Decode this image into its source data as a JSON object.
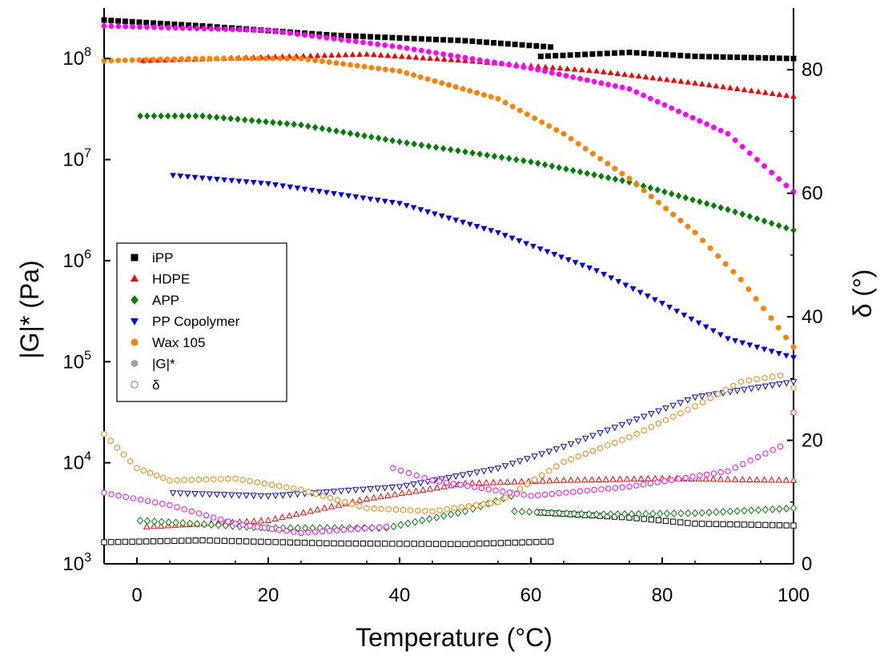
{
  "chart_data": {
    "type": "scatter",
    "xlabel": "Temperature (°C)",
    "ylabel_left": "|G|* (Pa)",
    "ylabel_right": "δ (°)",
    "xlim": [
      -5,
      100
    ],
    "ylim_left_log10": [
      3,
      8.5
    ],
    "ylim_right": [
      0,
      90
    ],
    "x_ticks": [
      0,
      20,
      40,
      60,
      80,
      100
    ],
    "y_left_ticks": [
      {
        "mant": "10",
        "exp": "3",
        "log": 3
      },
      {
        "mant": "10",
        "exp": "4",
        "log": 4
      },
      {
        "mant": "10",
        "exp": "5",
        "log": 5
      },
      {
        "mant": "10",
        "exp": "6",
        "log": 6
      },
      {
        "mant": "10",
        "exp": "7",
        "log": 7
      },
      {
        "mant": "10",
        "exp": "8",
        "log": 8
      }
    ],
    "y_right_ticks": [
      "0",
      "20",
      "40",
      "60",
      "80"
    ],
    "legend": {
      "position": "middle-left",
      "entries": [
        {
          "label": "iPP",
          "marker": "square",
          "color": "#000000",
          "filled": true
        },
        {
          "label": "HDPE",
          "marker": "triangle-up",
          "color": "#ff0000",
          "filled": true
        },
        {
          "label": "APP",
          "marker": "diamond",
          "color": "#008000",
          "filled": true
        },
        {
          "label": "PP Copolymer",
          "marker": "triangle-down",
          "color": "#0000ff",
          "filled": true
        },
        {
          "label": "Wax 105",
          "marker": "hexagon",
          "color": "#ff8000",
          "filled": true
        },
        {
          "label": "|G|*",
          "marker": "circle",
          "color": "#a0a0a0",
          "filled": true
        },
        {
          "label": "δ",
          "marker": "circle",
          "color": "#808080",
          "filled": false
        }
      ]
    },
    "series": [
      {
        "name": "iPP |G|*",
        "axis": "left",
        "marker": "square",
        "color": "#000000",
        "filled": true,
        "points": [
          [
            -5,
            240000000.0
          ],
          [
            10,
            210000000.0
          ],
          [
            30,
            170000000.0
          ],
          [
            50,
            150000000.0
          ],
          [
            63,
            130000000.0
          ],
          [
            61.5,
            105000000.0
          ],
          [
            75,
            115000000.0
          ],
          [
            85,
            105000000.0
          ],
          [
            100,
            100000000.0
          ]
        ]
      },
      {
        "name": "HDPE |G|*",
        "axis": "left",
        "marker": "triangle-up",
        "color": "#ff0000",
        "filled": true,
        "points": [
          [
            1,
            95000000.0
          ],
          [
            20,
            103000000.0
          ],
          [
            35,
            110000000.0
          ],
          [
            50,
            95000000.0
          ],
          [
            70,
            75000000.0
          ],
          [
            85,
            57000000.0
          ],
          [
            100,
            42000000.0
          ]
        ]
      },
      {
        "name": "APP |G|*",
        "axis": "left",
        "marker": "diamond",
        "color": "#008000",
        "filled": true,
        "points": [
          [
            0.5,
            27000000.0
          ],
          [
            10,
            27000000.0
          ],
          [
            25,
            22000000.0
          ],
          [
            40,
            15000000.0
          ],
          [
            60,
            9500000.0
          ],
          [
            75,
            6000000.0
          ],
          [
            90,
            3200000.0
          ],
          [
            100,
            2000000.0
          ]
        ]
      },
      {
        "name": "PP Copolymer |G|*",
        "axis": "left",
        "marker": "triangle-down",
        "color": "#0000ff",
        "filled": true,
        "points": [
          [
            5.5,
            7000000.0
          ],
          [
            20,
            5800000.0
          ],
          [
            40,
            3700000.0
          ],
          [
            55,
            1900000.0
          ],
          [
            70,
            800000.0
          ],
          [
            80,
            380000.0
          ],
          [
            90,
            170000.0
          ],
          [
            100,
            110000.0
          ]
        ]
      },
      {
        "name": "Wax 105 |G|*",
        "axis": "left",
        "marker": "hexagon",
        "color": "#ff8000",
        "filled": true,
        "points": [
          [
            -5,
            95000000.0
          ],
          [
            10,
            100000000.0
          ],
          [
            25,
            100000000.0
          ],
          [
            40,
            75000000.0
          ],
          [
            55,
            40000000.0
          ],
          [
            65,
            18000000.0
          ],
          [
            75,
            6500000.0
          ],
          [
            85,
            1900000.0
          ],
          [
            92,
            650000.0
          ],
          [
            100,
            140000.0
          ]
        ]
      },
      {
        "name": "Magenta |G|*",
        "axis": "left",
        "marker": "circle",
        "color": "#ff00ff",
        "filled": true,
        "points": [
          [
            -5,
            210000000.0
          ],
          [
            20,
            190000000.0
          ],
          [
            40,
            130000000.0
          ],
          [
            60,
            80000000.0
          ],
          [
            75,
            50000000.0
          ],
          [
            90,
            18000000.0
          ],
          [
            100,
            4800000.0
          ]
        ]
      },
      {
        "name": "iPP δ",
        "axis": "right",
        "marker": "square",
        "color": "#000000",
        "filled": false,
        "points": [
          [
            -5,
            3.5
          ],
          [
            10,
            3.8
          ],
          [
            30,
            3.3
          ],
          [
            50,
            3.2
          ],
          [
            63,
            3.6
          ],
          [
            61.5,
            8.3
          ],
          [
            75,
            7.5
          ],
          [
            85,
            6.5
          ],
          [
            100,
            6.2
          ]
        ]
      },
      {
        "name": "HDPE δ",
        "axis": "right",
        "marker": "triangle-up",
        "color": "#ff0000",
        "filled": false,
        "points": [
          [
            1.5,
            6.0
          ],
          [
            20,
            7.0
          ],
          [
            35,
            10.5
          ],
          [
            50,
            13.0
          ],
          [
            65,
            13.5
          ],
          [
            80,
            13.8
          ],
          [
            100,
            13.5
          ]
        ]
      },
      {
        "name": "APP δ",
        "axis": "right",
        "marker": "diamond",
        "color": "#008000",
        "filled": false,
        "points": [
          [
            0.5,
            7.0
          ],
          [
            20,
            5.8
          ],
          [
            38,
            5.8
          ],
          [
            50,
            8.5
          ],
          [
            57,
            11.0
          ],
          [
            57.5,
            8.5
          ],
          [
            70,
            8.0
          ],
          [
            85,
            8.2
          ],
          [
            100,
            9.0
          ]
        ]
      },
      {
        "name": "PP Copolymer δ",
        "axis": "right",
        "marker": "triangle-down",
        "color": "#0000ff",
        "filled": false,
        "points": [
          [
            5.5,
            11.5
          ],
          [
            20,
            11.0
          ],
          [
            40,
            12.5
          ],
          [
            55,
            15.5
          ],
          [
            65,
            19.0
          ],
          [
            75,
            23.0
          ],
          [
            85,
            27.0
          ],
          [
            100,
            29.5
          ]
        ]
      },
      {
        "name": "Wax 105 δ",
        "axis": "right",
        "marker": "hexagon",
        "color": "#ff8000",
        "filled": false,
        "points": [
          [
            -5,
            21.0
          ],
          [
            0,
            15.5
          ],
          [
            5,
            13.5
          ],
          [
            15,
            13.8
          ],
          [
            25,
            12.0
          ],
          [
            35,
            9.0
          ],
          [
            45,
            8.5
          ],
          [
            55,
            10.0
          ],
          [
            65,
            16.5
          ],
          [
            75,
            20.5
          ],
          [
            85,
            25.5
          ],
          [
            92,
            29.5
          ],
          [
            98,
            30.5
          ],
          [
            100,
            28.5
          ]
        ]
      },
      {
        "name": "Magenta δ",
        "axis": "right",
        "marker": "circle",
        "color": "#ff00ff",
        "filled": false,
        "points": [
          [
            -5,
            11.5
          ],
          [
            5,
            9.5
          ],
          [
            15,
            6.5
          ],
          [
            25,
            5.0
          ],
          [
            38,
            6.0
          ],
          [
            39,
            15.5
          ],
          [
            45,
            13.5
          ],
          [
            60,
            11.0
          ],
          [
            75,
            12.5
          ],
          [
            90,
            15.0
          ],
          [
            98,
            19.0
          ],
          [
            100,
            24.5
          ]
        ]
      }
    ]
  }
}
